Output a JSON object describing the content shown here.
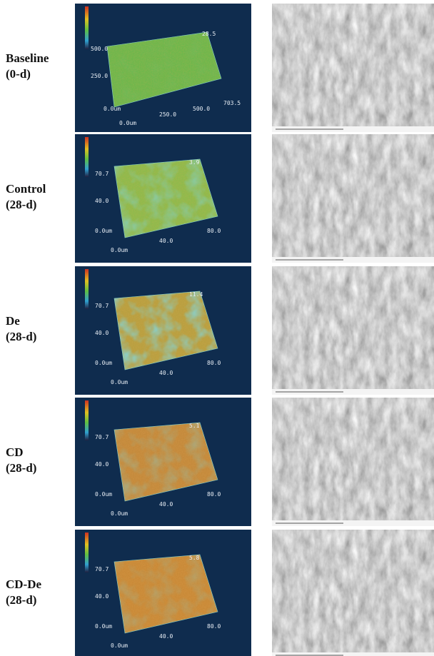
{
  "rows": [
    {
      "label": "Baseline",
      "sublabel": "(0-d)",
      "plot": {
        "z_max": "28.5",
        "y_left": "500.0",
        "y_mid": "250.0",
        "origin": "0.0um",
        "x_origin": "0.0um",
        "x_mid": "250.0",
        "x_next": "500.0",
        "x_end": "703.5"
      }
    },
    {
      "label": "Control",
      "sublabel": "(28-d)",
      "plot": {
        "z_max": "3.9",
        "y_left": "70.7",
        "y_mid": "40.0",
        "origin": "0.0um",
        "x_origin": "0.0um",
        "x_mid": "40.0",
        "x_end": "80.0"
      }
    },
    {
      "label": "De",
      "sublabel": "(28-d)",
      "plot": {
        "z_max": "11.4",
        "y_left": "70.7",
        "y_mid": "40.0",
        "origin": "0.0um",
        "x_origin": "0.0um",
        "x_mid": "40.0",
        "x_end": "80.0"
      }
    },
    {
      "label": "CD",
      "sublabel": "(28-d)",
      "plot": {
        "z_max": "5.1",
        "y_left": "70.7",
        "y_mid": "40.0",
        "origin": "0.0um",
        "x_origin": "0.0um",
        "x_mid": "40.0",
        "x_end": "80.0"
      }
    },
    {
      "label": "CD-De",
      "sublabel": "(28-d)",
      "plot": {
        "z_max": "5.8",
        "y_left": "70.7",
        "y_mid": "40.0",
        "origin": "0.0um",
        "x_origin": "0.0um",
        "x_mid": "40.0",
        "x_end": "80.0"
      }
    }
  ]
}
